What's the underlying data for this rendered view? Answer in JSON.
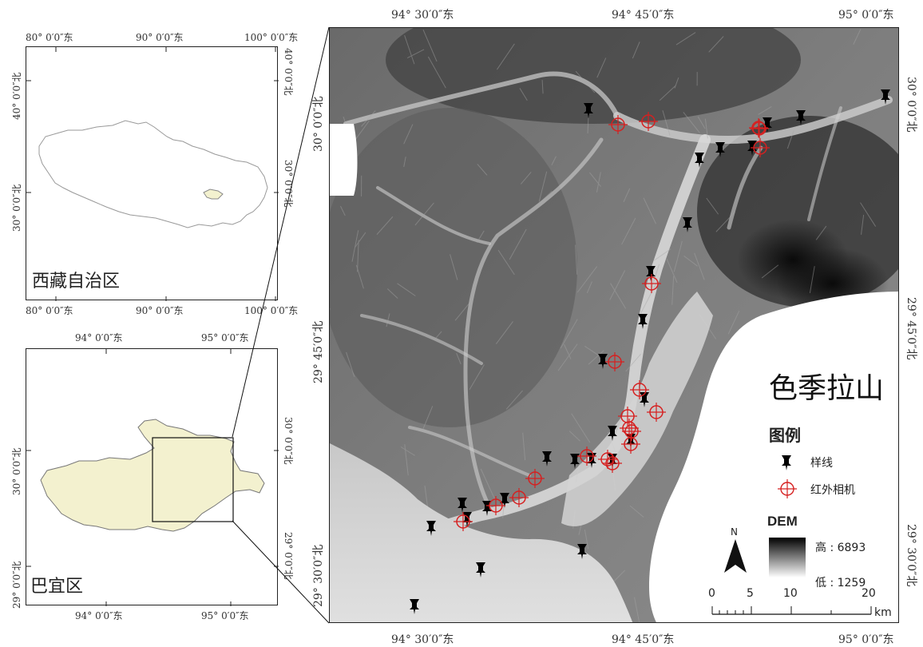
{
  "overview_map": {
    "title": "西藏自治区",
    "top_ticks": [
      "80° 0′0″东",
      "90° 0′0″东",
      "100° 0′0″东"
    ],
    "bottom_ticks": [
      "80° 0′0″东",
      "90° 0′0″东",
      "100° 0′0″东"
    ],
    "left_ticks": [
      "40° 0′0″北",
      "30° 0′0″北"
    ],
    "right_ticks": [
      "40° 0′0″北",
      "30° 0′0″北"
    ]
  },
  "county_map": {
    "title": "巴宜区",
    "top_ticks": [
      "94° 0′0″东",
      "95° 0′0″东"
    ],
    "bottom_ticks": [
      "94° 0′0″东",
      "95° 0′0″东"
    ],
    "left_ticks": [
      "30° 0′0″北",
      "29° 0′0″北"
    ],
    "right_ticks": [
      "30° 0′0″北",
      "29° 0′0″北"
    ]
  },
  "main_map": {
    "title": "色季拉山",
    "top_ticks": [
      "94° 30′0″东",
      "94° 45′0″东",
      "95° 0′0″东"
    ],
    "bottom_ticks": [
      "94° 30′0″东",
      "94° 45′0″东",
      "95° 0′0″东"
    ],
    "left_ticks": [
      "30° 0′0″北",
      "29° 45′0″北",
      "29° 30′0″北"
    ],
    "right_ticks": [
      "30° 0′0″北",
      "29° 45′0″北",
      "29° 30′0″北"
    ],
    "legend": {
      "title": "图例",
      "items": [
        {
          "label": "样线",
          "icon": "pushpin-icon",
          "color": "#000000"
        },
        {
          "label": "红外相机",
          "icon": "crosshair-icon",
          "color": "#d62020"
        }
      ]
    },
    "dem": {
      "title": "DEM",
      "high_label": "高 : 6893",
      "low_label": "低 : 1259"
    },
    "north_arrow": {
      "label": "N"
    },
    "scale_bar": {
      "labels": [
        "0",
        "5",
        "10",
        "20"
      ],
      "unit": "km"
    }
  },
  "colors": {
    "region_fill": "#f3f1cf",
    "camera_red": "#d62020",
    "marker_black": "#000000"
  }
}
